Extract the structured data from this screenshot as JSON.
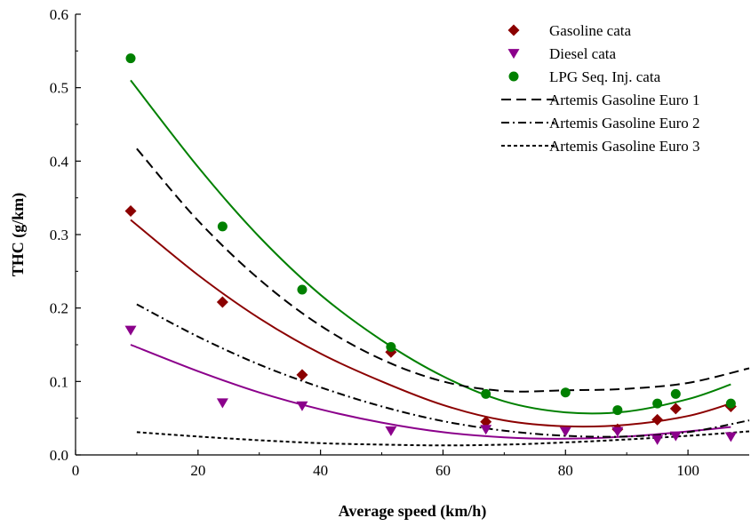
{
  "chart_data": {
    "type": "scatter",
    "title": "",
    "xlabel": "Average speed (km/h)",
    "ylabel": "THC (g/km)",
    "xlim": [
      0,
      110
    ],
    "ylim": [
      0,
      0.6
    ],
    "x_ticks": [
      0,
      20,
      40,
      60,
      80,
      100
    ],
    "y_ticks": [
      0.0,
      0.1,
      0.2,
      0.3,
      0.4,
      0.5,
      0.6
    ],
    "x_tick_labels": [
      "0",
      "20",
      "40",
      "60",
      "80",
      "100"
    ],
    "y_tick_labels": [
      "0.0",
      "0.1",
      "0.2",
      "0.3",
      "0.4",
      "0.5",
      "0.6"
    ],
    "grid": false,
    "legend_position": "top-right",
    "series": [
      {
        "name": "Gasoline cata",
        "kind": "points",
        "marker": "diamond",
        "color": "#8b0000",
        "x": [
          9,
          24,
          37,
          51.5,
          67,
          88.5,
          95,
          98,
          107
        ],
        "y": [
          0.332,
          0.208,
          0.109,
          0.14,
          0.045,
          0.035,
          0.048,
          0.063,
          0.066
        ]
      },
      {
        "name": "Diesel cata",
        "kind": "points",
        "marker": "triangle-down",
        "color": "#8b008b",
        "x": [
          9,
          24,
          37,
          51.5,
          67,
          80,
          88.5,
          95,
          98,
          107
        ],
        "y": [
          0.17,
          0.071,
          0.067,
          0.033,
          0.035,
          0.032,
          0.032,
          0.021,
          0.026,
          0.025
        ]
      },
      {
        "name": "LPG Seq. Inj. cata",
        "kind": "points",
        "marker": "circle",
        "color": "#008000",
        "x": [
          9,
          24,
          37,
          51.5,
          67,
          80,
          88.5,
          95,
          98,
          107
        ],
        "y": [
          0.54,
          0.311,
          0.225,
          0.147,
          0.083,
          0.085,
          0.061,
          0.07,
          0.083,
          0.07
        ]
      },
      {
        "name": "Artemis Gasoline Euro 1",
        "kind": "line",
        "dash": "dashed",
        "color": "#000000",
        "x": [
          10,
          20,
          30,
          40,
          50,
          60,
          70,
          80,
          90,
          100,
          110
        ],
        "y": [
          0.417,
          0.319,
          0.239,
          0.176,
          0.13,
          0.1,
          0.087,
          0.088,
          0.09,
          0.098,
          0.118
        ]
      },
      {
        "name": "Artemis Gasoline Euro 2",
        "kind": "line",
        "dash": "dash-dot",
        "color": "#000000",
        "x": [
          10,
          20,
          30,
          40,
          50,
          60,
          70,
          80,
          90,
          100,
          110
        ],
        "y": [
          0.205,
          0.161,
          0.123,
          0.092,
          0.066,
          0.046,
          0.033,
          0.026,
          0.025,
          0.031,
          0.047
        ]
      },
      {
        "name": "Artemis Gasoline Euro 3",
        "kind": "line",
        "dash": "dotted",
        "color": "#000000",
        "x": [
          10,
          20,
          30,
          40,
          50,
          60,
          70,
          80,
          90,
          100,
          110
        ],
        "y": [
          0.031,
          0.025,
          0.02,
          0.016,
          0.014,
          0.013,
          0.014,
          0.017,
          0.021,
          0.026,
          0.032
        ]
      }
    ],
    "trend_lines": [
      {
        "color": "#8b0000",
        "x": [
          9,
          20,
          30,
          40,
          50,
          60,
          70,
          80,
          90,
          100,
          107
        ],
        "y": [
          0.32,
          0.245,
          0.186,
          0.138,
          0.1,
          0.068,
          0.047,
          0.039,
          0.041,
          0.053,
          0.07
        ]
      },
      {
        "color": "#8b008b",
        "x": [
          9,
          20,
          30,
          40,
          50,
          60,
          70,
          80,
          90,
          100,
          107
        ],
        "y": [
          0.15,
          0.114,
          0.085,
          0.062,
          0.044,
          0.031,
          0.024,
          0.022,
          0.025,
          0.032,
          0.038
        ]
      },
      {
        "color": "#008000",
        "x": [
          9,
          20,
          30,
          40,
          50,
          60,
          70,
          80,
          90,
          100,
          107
        ],
        "y": [
          0.51,
          0.392,
          0.297,
          0.218,
          0.156,
          0.107,
          0.073,
          0.058,
          0.059,
          0.076,
          0.096
        ]
      }
    ]
  }
}
